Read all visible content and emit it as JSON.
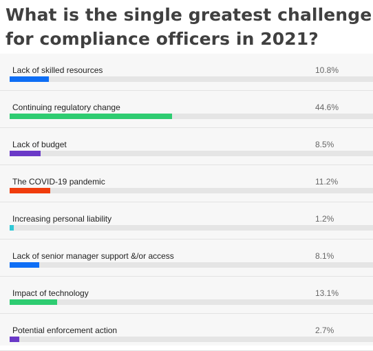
{
  "title_line1": "What is the single greatest challenge",
  "title_line2": "for compliance officers in 2021?",
  "chart_data": {
    "type": "bar",
    "orientation": "horizontal",
    "title": "What is the single greatest challenge for compliance officers in 2021?",
    "categories": [
      "Lack of skilled resources",
      "Continuing regulatory change",
      "Lack of budget",
      "The COVID-19 pandemic",
      "Increasing personal liability",
      "Lack of senior manager support &/or access",
      "Impact of technology",
      "Potential enforcement action"
    ],
    "values": [
      10.8,
      44.6,
      8.5,
      11.2,
      1.2,
      8.1,
      13.1,
      2.7
    ],
    "value_labels": [
      "10.8%",
      "44.6%",
      "8.5%",
      "11.2%",
      "1.2%",
      "8.1%",
      "13.1%",
      "2.7%"
    ],
    "colors": [
      "#0e6ef5",
      "#2ecc71",
      "#6a39c7",
      "#f03c0c",
      "#30c8d6",
      "#0e6ef5",
      "#2ecc71",
      "#6a39c7"
    ],
    "xlim": [
      0,
      100
    ],
    "unit": "%"
  }
}
